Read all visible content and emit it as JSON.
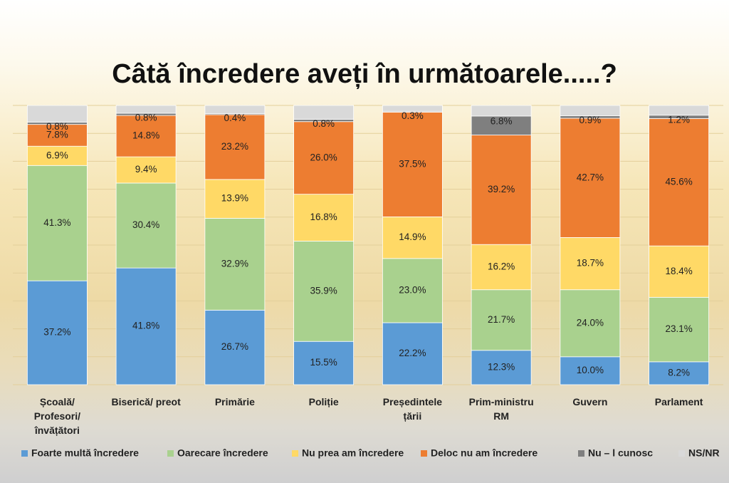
{
  "chart_data": {
    "type": "bar",
    "stacked": true,
    "title": "Câtă încredere aveți în următoarele.....?",
    "categories": [
      [
        "Școală/",
        "Profesori/",
        "învățători"
      ],
      [
        "Biserică/ preot"
      ],
      [
        "Primărie"
      ],
      [
        "Poliție"
      ],
      [
        "Președintele",
        "țării"
      ],
      [
        "Prim-ministru",
        "RM"
      ],
      [
        "Guvern"
      ],
      [
        "Parlament"
      ]
    ],
    "series": [
      {
        "name": "Foarte multă încredere",
        "color": "#5b9bd5",
        "values": [
          37.2,
          41.8,
          26.7,
          15.5,
          22.2,
          12.3,
          10.0,
          8.2
        ],
        "labels": [
          "37.2%",
          "41.8%",
          "26.7%",
          "15.5%",
          "22.2%",
          "12.3%",
          "10.0%",
          "8.2%"
        ]
      },
      {
        "name": "Oarecare încredere",
        "color": "#a9d18e",
        "values": [
          41.3,
          30.4,
          32.9,
          35.9,
          23.0,
          21.7,
          24.0,
          23.1
        ],
        "labels": [
          "41.3%",
          "30.4%",
          "32.9%",
          "35.9%",
          "23.0%",
          "21.7%",
          "24.0%",
          "23.1%"
        ]
      },
      {
        "name": "Nu prea am încredere",
        "color": "#ffd966",
        "values": [
          6.9,
          9.4,
          13.9,
          16.8,
          14.9,
          16.2,
          18.7,
          18.4
        ],
        "labels": [
          "6.9%",
          "9.4%",
          "13.9%",
          "16.8%",
          "14.9%",
          "16.2%",
          "18.7%",
          "18.4%"
        ]
      },
      {
        "name": "Deloc nu am încredere",
        "color": "#ed7d31",
        "values": [
          7.8,
          14.8,
          23.2,
          26.0,
          37.5,
          39.2,
          42.7,
          45.6
        ],
        "labels": [
          "7.8%",
          "14.8%",
          "23.2%",
          "26.0%",
          "37.5%",
          "39.2%",
          "42.7%",
          "45.6%"
        ]
      },
      {
        "name": "Nu – l cunosc",
        "color": "#7f7f7f",
        "values": [
          0.8,
          0.8,
          0.4,
          0.8,
          0.3,
          6.8,
          0.9,
          1.2
        ],
        "labels": [
          "0.8%",
          "0.8%",
          "0.4%",
          "0.8%",
          "0.3%",
          "6.8%",
          "0.9%",
          "1.2%"
        ]
      },
      {
        "name": "NS/NR",
        "color": "#d9d9d9",
        "values": [
          6.0,
          2.8,
          2.9,
          5.0,
          2.1,
          3.8,
          3.7,
          3.5
        ],
        "labels": []
      }
    ],
    "ylim": [
      0,
      100
    ],
    "grid": true,
    "legend": "bottom",
    "xlabel": "",
    "ylabel": ""
  }
}
